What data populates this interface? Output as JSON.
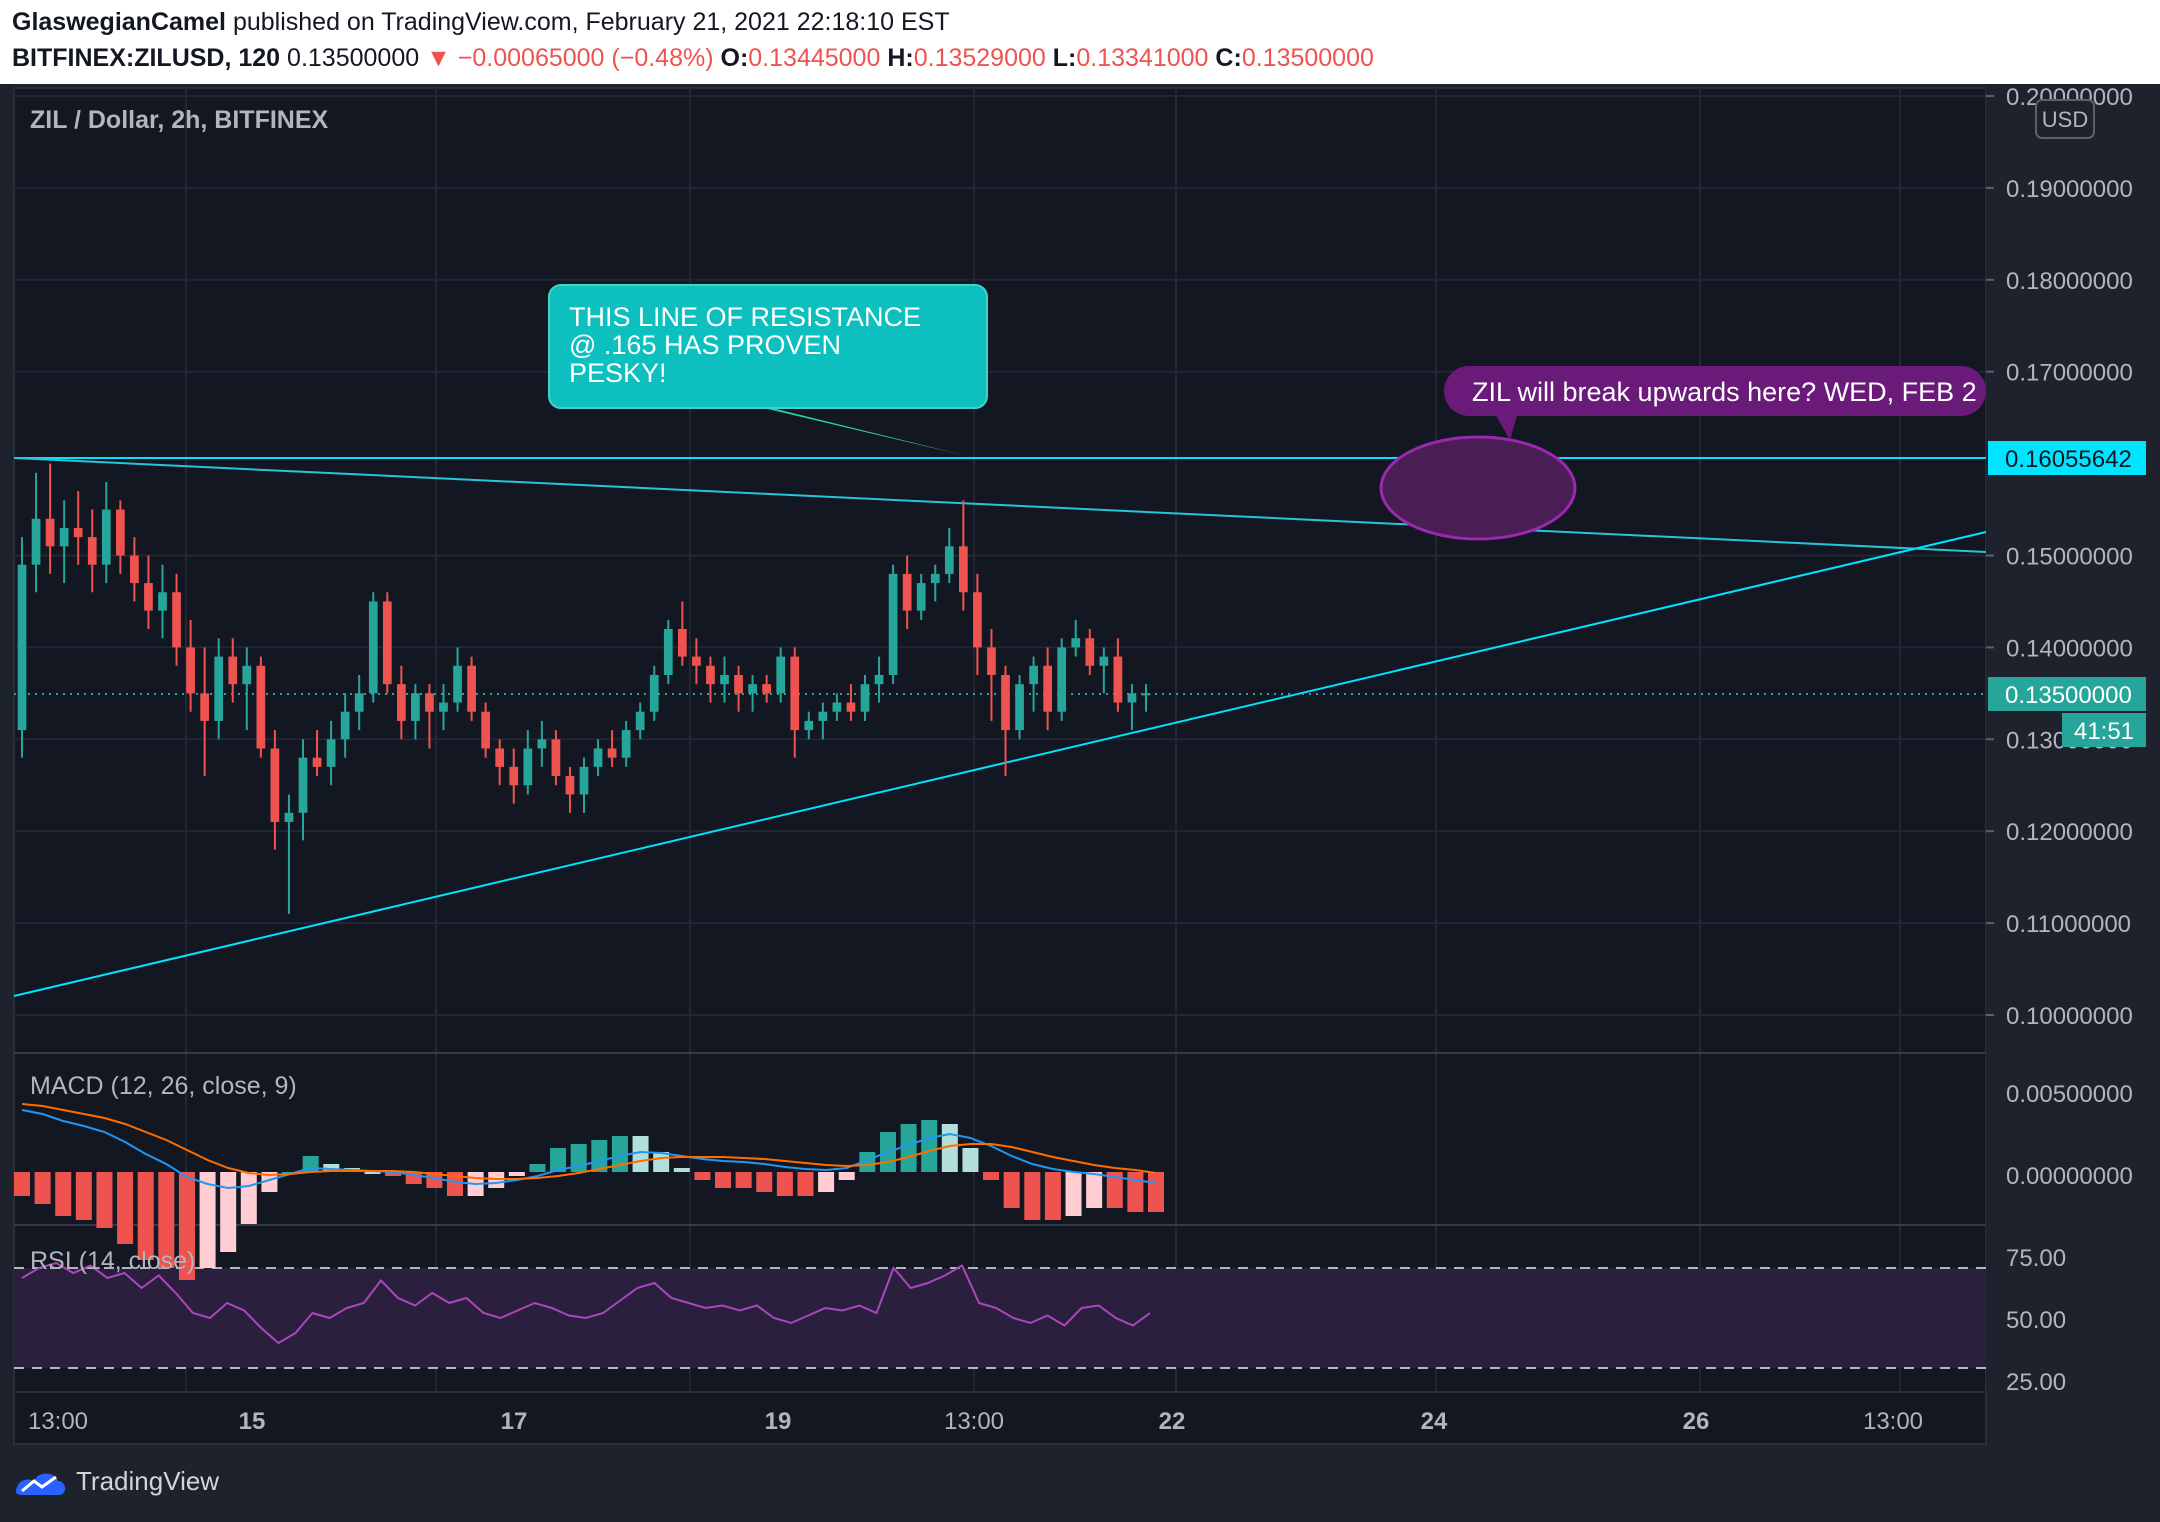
{
  "header": {
    "author": "GlaswegianCamel",
    "published_text": "published on TradingView.com, February 21, 2021 22:18:10 EST",
    "symbol": "BITFINEX:ZILUSD, 120",
    "last_price": "0.13500000",
    "change": "▼ −0.00065000 (−0.48%)",
    "o_label": "O:",
    "o_value": "0.13445000",
    "h_label": "H:",
    "h_value": "0.13529000",
    "l_label": "L:",
    "l_value": "0.13341000",
    "c_label": "C:",
    "c_value": "0.13500000"
  },
  "chart": {
    "title": "ZIL / Dollar, 2h, BITFINEX",
    "currency": "USD",
    "price_ticks": [
      "0.20000000",
      "0.19000000",
      "0.18000000",
      "0.17000000",
      "0.15000000",
      "0.14000000",
      "0.13000000",
      "0.12000000",
      "0.11000000",
      "0.10000000"
    ],
    "price_tick_values": [
      0.2,
      0.19,
      0.18,
      0.17,
      0.15,
      0.14,
      0.13,
      0.12,
      0.11,
      0.1
    ],
    "last_price_label": "0.13500000",
    "countdown": "41:51",
    "resistance_label": "0.16055642",
    "colors": {
      "up": "#26a69a",
      "down": "#ef5350",
      "line": "#00e5ff",
      "macd": "#2196f3",
      "signal": "#ff6d00",
      "rsi": "#ab47bc",
      "note_purple": "#7b1fa2",
      "note_teal": "#0dbfbf"
    }
  },
  "annotations": {
    "teal_note_line1": "THIS LINE OF RESISTANCE",
    "teal_note_line2": "@ .165 HAS PROVEN",
    "teal_note_line3": "PESKY!",
    "purple_note": "ZIL will break upwards here?  WED, FEB 2"
  },
  "macd_panel": {
    "title": "MACD (12, 26, close, 9)",
    "ticks": [
      "0.00500000",
      "0.00000000"
    ]
  },
  "rsi_panel": {
    "title": "RSI (14, close)",
    "ticks": [
      "75.00",
      "50.00",
      "25.00"
    ]
  },
  "time_axis": {
    "labels": [
      "13:00",
      "15",
      "17",
      "19",
      "13:00",
      "22",
      "24",
      "26",
      "13:00"
    ]
  },
  "chart_data": {
    "type": "candlestick",
    "title": "ZIL / Dollar, 2h, BITFINEX",
    "ylabel": "USD",
    "ylim": [
      0.098,
      0.201
    ],
    "last_close": 0.135,
    "resistance_level": 0.16055642,
    "x_labels": [
      "13:00",
      "15",
      "17",
      "19",
      "13:00",
      "22",
      "24",
      "26",
      "13:00"
    ],
    "ohlc": [
      [
        0.131,
        0.152,
        0.128,
        0.149
      ],
      [
        0.149,
        0.159,
        0.146,
        0.154
      ],
      [
        0.154,
        0.16,
        0.148,
        0.151
      ],
      [
        0.151,
        0.156,
        0.147,
        0.153
      ],
      [
        0.153,
        0.157,
        0.149,
        0.152
      ],
      [
        0.152,
        0.155,
        0.146,
        0.149
      ],
      [
        0.149,
        0.158,
        0.147,
        0.155
      ],
      [
        0.155,
        0.156,
        0.148,
        0.15
      ],
      [
        0.15,
        0.152,
        0.145,
        0.147
      ],
      [
        0.147,
        0.15,
        0.142,
        0.144
      ],
      [
        0.144,
        0.149,
        0.141,
        0.146
      ],
      [
        0.146,
        0.148,
        0.138,
        0.14
      ],
      [
        0.14,
        0.143,
        0.133,
        0.135
      ],
      [
        0.135,
        0.14,
        0.126,
        0.132
      ],
      [
        0.132,
        0.141,
        0.13,
        0.139
      ],
      [
        0.139,
        0.141,
        0.134,
        0.136
      ],
      [
        0.136,
        0.14,
        0.131,
        0.138
      ],
      [
        0.138,
        0.139,
        0.128,
        0.129
      ],
      [
        0.129,
        0.131,
        0.118,
        0.121
      ],
      [
        0.121,
        0.124,
        0.111,
        0.122
      ],
      [
        0.122,
        0.13,
        0.119,
        0.128
      ],
      [
        0.128,
        0.131,
        0.126,
        0.127
      ],
      [
        0.127,
        0.132,
        0.125,
        0.13
      ],
      [
        0.13,
        0.135,
        0.128,
        0.133
      ],
      [
        0.133,
        0.137,
        0.131,
        0.135
      ],
      [
        0.135,
        0.146,
        0.134,
        0.145
      ],
      [
        0.145,
        0.146,
        0.135,
        0.136
      ],
      [
        0.136,
        0.138,
        0.13,
        0.132
      ],
      [
        0.132,
        0.136,
        0.13,
        0.135
      ],
      [
        0.135,
        0.136,
        0.129,
        0.133
      ],
      [
        0.133,
        0.136,
        0.131,
        0.134
      ],
      [
        0.134,
        0.14,
        0.133,
        0.138
      ],
      [
        0.138,
        0.139,
        0.132,
        0.133
      ],
      [
        0.133,
        0.134,
        0.128,
        0.129
      ],
      [
        0.129,
        0.13,
        0.125,
        0.127
      ],
      [
        0.127,
        0.129,
        0.123,
        0.125
      ],
      [
        0.125,
        0.131,
        0.124,
        0.129
      ],
      [
        0.129,
        0.132,
        0.127,
        0.13
      ],
      [
        0.13,
        0.131,
        0.125,
        0.126
      ],
      [
        0.126,
        0.127,
        0.122,
        0.124
      ],
      [
        0.124,
        0.128,
        0.122,
        0.127
      ],
      [
        0.127,
        0.13,
        0.126,
        0.129
      ],
      [
        0.129,
        0.131,
        0.127,
        0.128
      ],
      [
        0.128,
        0.132,
        0.127,
        0.131
      ],
      [
        0.131,
        0.134,
        0.13,
        0.133
      ],
      [
        0.133,
        0.138,
        0.132,
        0.137
      ],
      [
        0.137,
        0.143,
        0.136,
        0.142
      ],
      [
        0.142,
        0.145,
        0.138,
        0.139
      ],
      [
        0.139,
        0.141,
        0.136,
        0.138
      ],
      [
        0.138,
        0.139,
        0.134,
        0.136
      ],
      [
        0.136,
        0.139,
        0.134,
        0.137
      ],
      [
        0.137,
        0.138,
        0.133,
        0.135
      ],
      [
        0.135,
        0.137,
        0.133,
        0.136
      ],
      [
        0.136,
        0.137,
        0.134,
        0.135
      ],
      [
        0.135,
        0.14,
        0.134,
        0.139
      ],
      [
        0.139,
        0.14,
        0.128,
        0.131
      ],
      [
        0.131,
        0.133,
        0.13,
        0.132
      ],
      [
        0.132,
        0.134,
        0.13,
        0.133
      ],
      [
        0.133,
        0.135,
        0.132,
        0.134
      ],
      [
        0.134,
        0.136,
        0.132,
        0.133
      ],
      [
        0.133,
        0.137,
        0.132,
        0.136
      ],
      [
        0.136,
        0.139,
        0.134,
        0.137
      ],
      [
        0.137,
        0.149,
        0.136,
        0.148
      ],
      [
        0.148,
        0.15,
        0.142,
        0.144
      ],
      [
        0.144,
        0.148,
        0.143,
        0.147
      ],
      [
        0.147,
        0.149,
        0.145,
        0.148
      ],
      [
        0.148,
        0.153,
        0.147,
        0.151
      ],
      [
        0.151,
        0.156,
        0.144,
        0.146
      ],
      [
        0.146,
        0.148,
        0.137,
        0.14
      ],
      [
        0.14,
        0.142,
        0.132,
        0.137
      ],
      [
        0.137,
        0.138,
        0.126,
        0.131
      ],
      [
        0.131,
        0.137,
        0.13,
        0.136
      ],
      [
        0.136,
        0.139,
        0.133,
        0.138
      ],
      [
        0.138,
        0.14,
        0.131,
        0.133
      ],
      [
        0.133,
        0.141,
        0.132,
        0.14
      ],
      [
        0.14,
        0.143,
        0.139,
        0.141
      ],
      [
        0.141,
        0.142,
        0.137,
        0.138
      ],
      [
        0.138,
        0.14,
        0.135,
        0.139
      ],
      [
        0.139,
        0.141,
        0.133,
        0.134
      ],
      [
        0.134,
        0.136,
        0.131,
        0.135
      ],
      [
        0.135,
        0.136,
        0.133,
        0.135
      ]
    ],
    "macd": {
      "series": [
        {
          "name": "MACD",
          "values": [
            0.0062,
            0.0058,
            0.0051,
            0.0046,
            0.004,
            0.003,
            0.0018,
            0.0008,
            -0.0005,
            -0.0012,
            -0.0016,
            -0.0014,
            -0.0008,
            -0.0002,
            0.0004,
            0.0003,
            0.0002,
            0.0001,
            0.0,
            -0.0003,
            -0.0006,
            -0.001,
            -0.0012,
            -0.0011,
            -0.0008,
            -0.0004,
            0.0002,
            0.0006,
            0.0011,
            0.0016,
            0.002,
            0.0019,
            0.0016,
            0.0013,
            0.0011,
            0.001,
            0.0008,
            0.0005,
            0.0003,
            0.0002,
            0.0004,
            0.0012,
            0.002,
            0.0027,
            0.0034,
            0.0038,
            0.0034,
            0.0026,
            0.0016,
            0.0008,
            0.0003,
            0.0,
            -0.0002,
            -0.0005,
            -0.0008,
            -0.0011
          ]
        },
        {
          "name": "Signal",
          "values": [
            0.0068,
            0.0066,
            0.0062,
            0.0058,
            0.0054,
            0.0048,
            0.004,
            0.0032,
            0.0022,
            0.0012,
            0.0004,
            -0.0001,
            -0.0003,
            -0.0002,
            0.0,
            0.0001,
            0.0001,
            0.0001,
            0.0001,
            0.0,
            -0.0002,
            -0.0004,
            -0.0006,
            -0.0007,
            -0.0007,
            -0.0006,
            -0.0004,
            -0.0001,
            0.0003,
            0.0007,
            0.0011,
            0.0014,
            0.0015,
            0.0015,
            0.0015,
            0.0014,
            0.0013,
            0.0011,
            0.0009,
            0.0007,
            0.0006,
            0.0007,
            0.001,
            0.0015,
            0.0021,
            0.0026,
            0.0028,
            0.0028,
            0.0025,
            0.002,
            0.0015,
            0.0011,
            0.0007,
            0.0004,
            0.0002,
            -0.0001
          ]
        }
      ]
    },
    "rsi": {
      "upper_band": 70,
      "lower_band": 30,
      "values": [
        66,
        70,
        72,
        68,
        71,
        66,
        68,
        62,
        67,
        60,
        52,
        50,
        56,
        53,
        46,
        40,
        44,
        52,
        50,
        54,
        56,
        65,
        58,
        55,
        60,
        56,
        58,
        52,
        50,
        53,
        56,
        54,
        51,
        50,
        52,
        57,
        62,
        64,
        58,
        56,
        54,
        55,
        53,
        55,
        50,
        48,
        51,
        54,
        53,
        55,
        52,
        70,
        62,
        64,
        67,
        71,
        56,
        54,
        50,
        48,
        51,
        47,
        54,
        55,
        50,
        47,
        52
      ]
    }
  }
}
